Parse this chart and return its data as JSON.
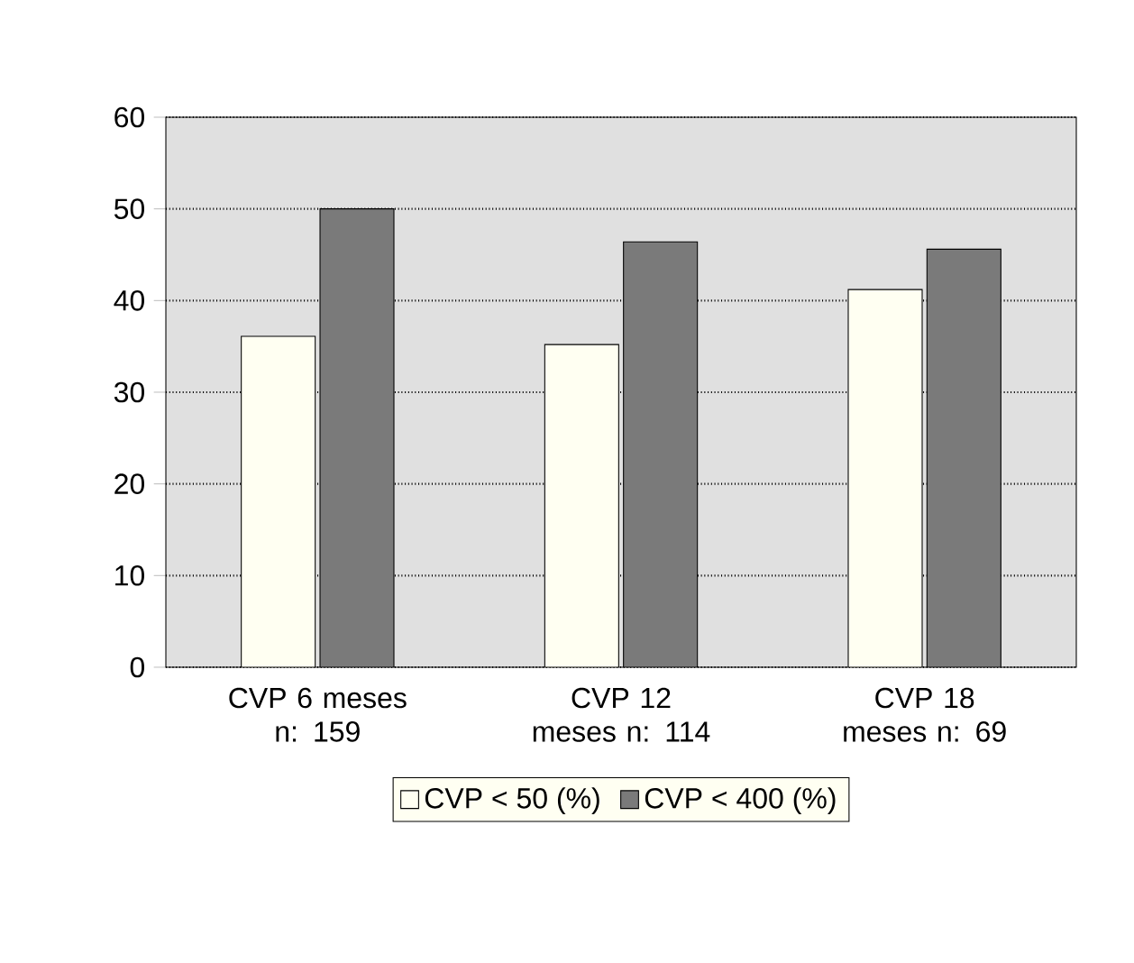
{
  "chart_data": {
    "type": "bar",
    "categories": [
      "CVP 6 meses n: 159",
      "CVP 12 meses n: 114",
      "CVP 18 meses n: 69"
    ],
    "series": [
      {
        "name": "CVP < 50 (%)",
        "color": "#fffff2",
        "values": [
          36.1,
          35.2,
          41.2
        ]
      },
      {
        "name": "CVP < 400 (%)",
        "color": "#7a7a7a",
        "values": [
          50,
          46.4,
          45.6
        ]
      }
    ],
    "ylim": [
      0,
      60
    ],
    "yticks": [
      0,
      10,
      20,
      30,
      40,
      50,
      60
    ],
    "grid": "y",
    "legend": "bottom"
  }
}
